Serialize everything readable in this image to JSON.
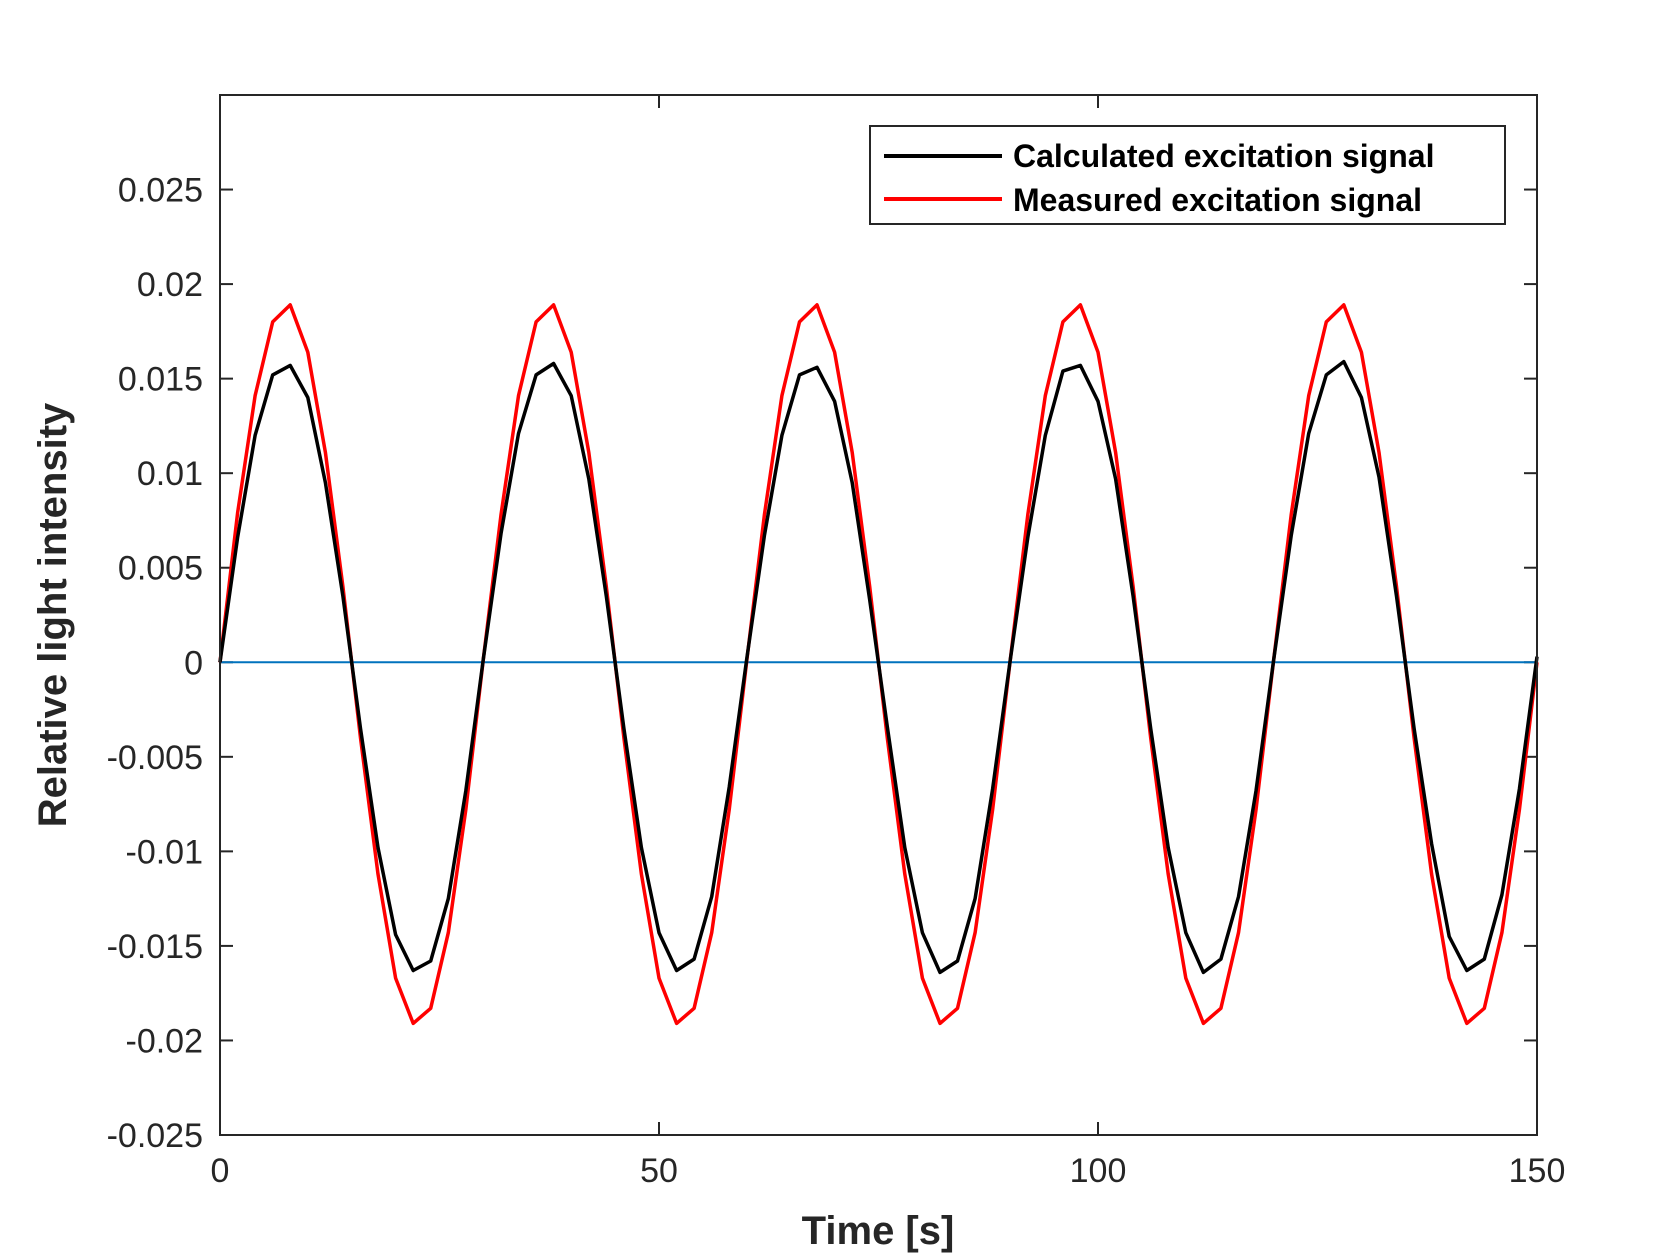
{
  "chart_data": {
    "type": "line",
    "title": "",
    "xlabel": "Time [s]",
    "ylabel": "Relative light intensity",
    "xlim": [
      0,
      150
    ],
    "ylim": [
      -0.025,
      0.03
    ],
    "xticks": [
      0,
      50,
      100,
      150
    ],
    "xtick_labels": [
      "0",
      "50",
      "100",
      "150"
    ],
    "yticks": [
      -0.025,
      -0.02,
      -0.015,
      -0.01,
      -0.005,
      0,
      0.005,
      0.01,
      0.015,
      0.02,
      0.025
    ],
    "ytick_labels": [
      "-0.025",
      "-0.02",
      "-0.015",
      "-0.01",
      "-0.005",
      "0",
      "0.005",
      "0.01",
      "0.015",
      "0.02",
      "0.025"
    ],
    "grid": false,
    "legend_position": "top-right",
    "series": [
      {
        "name": "Calculated excitation signal",
        "color": "#000000",
        "x": [
          0,
          2,
          4,
          6,
          8,
          10,
          12,
          14,
          16,
          18,
          20,
          22,
          24,
          26,
          28,
          30,
          32,
          34,
          36,
          38,
          40,
          42,
          44,
          46,
          48,
          50,
          52,
          54,
          56,
          58,
          60,
          62,
          64,
          66,
          68,
          70,
          72,
          74,
          76,
          78,
          80,
          82,
          84,
          86,
          88,
          90,
          92,
          94,
          96,
          98,
          100,
          102,
          104,
          106,
          108,
          110,
          112,
          114,
          116,
          118,
          120,
          122,
          124,
          126,
          128,
          130,
          132,
          134,
          136,
          138,
          140,
          142,
          144,
          146,
          148,
          150
        ],
        "y": [
          0.0,
          0.0066,
          0.012,
          0.0152,
          0.0157,
          0.014,
          0.0095,
          0.0035,
          -0.0035,
          -0.0098,
          -0.0144,
          -0.0163,
          -0.0158,
          -0.0125,
          -0.0068,
          0.0002,
          0.0068,
          0.0121,
          0.0152,
          0.0158,
          0.0141,
          0.0097,
          0.0035,
          -0.0035,
          -0.0098,
          -0.0143,
          -0.0163,
          -0.0157,
          -0.0124,
          -0.0066,
          0.0002,
          0.0067,
          0.012,
          0.0152,
          0.0156,
          0.0138,
          0.0095,
          0.0033,
          -0.0034,
          -0.0098,
          -0.0143,
          -0.0164,
          -0.0158,
          -0.0125,
          -0.0067,
          0.0001,
          0.0066,
          0.012,
          0.0154,
          0.0157,
          0.0138,
          0.0097,
          0.0035,
          -0.0035,
          -0.0098,
          -0.0143,
          -0.0164,
          -0.0157,
          -0.0124,
          -0.0068,
          0.0001,
          0.0067,
          0.0121,
          0.0152,
          0.0159,
          0.014,
          0.0098,
          0.0035,
          -0.0035,
          -0.0096,
          -0.0145,
          -0.0163,
          -0.0157,
          -0.0123,
          -0.0067,
          0.0003
        ]
      },
      {
        "name": "Measured excitation signal",
        "color": "#ff0000",
        "x": [
          0,
          2,
          4,
          6,
          8,
          10,
          12,
          14,
          16,
          18,
          20,
          22,
          24,
          26,
          28,
          30,
          32,
          34,
          36,
          38,
          40,
          42,
          44,
          46,
          48,
          50,
          52,
          54,
          56,
          58,
          60,
          62,
          64,
          66,
          68,
          70,
          72,
          74,
          76,
          78,
          80,
          82,
          84,
          86,
          88,
          90,
          92,
          94,
          96,
          98,
          100,
          102,
          104,
          106,
          108,
          110,
          112,
          114,
          116,
          118,
          120,
          122,
          124,
          126,
          128,
          130,
          132,
          134,
          136,
          138,
          140,
          142,
          144,
          146,
          148,
          150
        ],
        "y": [
          0.0,
          0.0079,
          0.0141,
          0.018,
          0.0189,
          0.0164,
          0.0111,
          0.004,
          -0.004,
          -0.0112,
          -0.0167,
          -0.0191,
          -0.0183,
          -0.0143,
          -0.0078,
          0.0002,
          0.0078,
          0.0141,
          0.018,
          0.0189,
          0.0164,
          0.0111,
          0.004,
          -0.004,
          -0.0112,
          -0.0167,
          -0.0191,
          -0.0183,
          -0.0143,
          -0.0078,
          0.0001,
          0.0078,
          0.0141,
          0.018,
          0.0189,
          0.0164,
          0.0111,
          0.004,
          -0.004,
          -0.0112,
          -0.0167,
          -0.0191,
          -0.0183,
          -0.0143,
          -0.0078,
          0.0001,
          0.0078,
          0.0141,
          0.018,
          0.0189,
          0.0164,
          0.0111,
          0.004,
          -0.004,
          -0.0112,
          -0.0167,
          -0.0191,
          -0.0183,
          -0.0143,
          -0.0078,
          0.0001,
          0.0078,
          0.0141,
          0.018,
          0.0189,
          0.0164,
          0.0111,
          0.004,
          -0.004,
          -0.0112,
          -0.0167,
          -0.0191,
          -0.0183,
          -0.0143,
          -0.0078,
          0.0
        ]
      },
      {
        "color": "#0072bd",
        "x": [
          0,
          150
        ],
        "y": [
          0,
          0
        ]
      }
    ]
  }
}
